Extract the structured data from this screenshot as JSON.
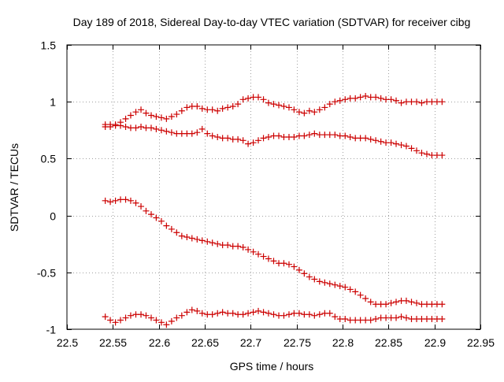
{
  "chart_data": {
    "type": "scatter",
    "title": "Day 189 of 2018, Sidereal Day-to-day VTEC variation (SDTVAR) for receiver cibg",
    "xlabel": "GPS time / hours",
    "ylabel": "SDTVAR / TECUs",
    "xlim": [
      22.5,
      22.95
    ],
    "ylim": [
      -1,
      1.5
    ],
    "xticks": [
      22.5,
      22.55,
      22.6,
      22.65,
      22.7,
      22.75,
      22.8,
      22.85,
      22.9,
      22.95
    ],
    "yticks": [
      -1,
      -0.5,
      0,
      0.5,
      1,
      1.5
    ],
    "xtick_labels": [
      "22.5",
      "22.55",
      "22.6",
      "22.65",
      "22.7",
      "22.75",
      "22.8",
      "22.85",
      "22.9",
      "22.95"
    ],
    "ytick_labels": [
      "-1",
      "-0.5",
      "0",
      "0.5",
      "1",
      "1.5"
    ],
    "grid": true,
    "marker": "+",
    "series_color": "#cc0000",
    "series": [
      {
        "name": "series-1",
        "x": [
          22.5417,
          22.5472,
          22.5528,
          22.5583,
          22.5639,
          22.5694,
          22.575,
          22.5806,
          22.5861,
          22.5917,
          22.5972,
          22.6028,
          22.6083,
          22.6139,
          22.6194,
          22.625,
          22.6306,
          22.6361,
          22.6417,
          22.6472,
          22.6528,
          22.6583,
          22.6639,
          22.6694,
          22.675,
          22.6806,
          22.6861,
          22.6917,
          22.6972,
          22.7028,
          22.7083,
          22.7139,
          22.7194,
          22.725,
          22.7306,
          22.7361,
          22.7417,
          22.7472,
          22.7528,
          22.7583,
          22.7639,
          22.7694,
          22.775,
          22.7806,
          22.7861,
          22.7917,
          22.7972,
          22.8028,
          22.8083,
          22.8139,
          22.8194,
          22.825,
          22.8306,
          22.8361,
          22.8417,
          22.8472,
          22.8528,
          22.8583,
          22.8639,
          22.8694,
          22.875,
          22.8806,
          22.8861,
          22.8917,
          22.8972,
          22.9028,
          22.9083
        ],
        "y": [
          0.8,
          0.8,
          0.8,
          0.82,
          0.85,
          0.88,
          0.91,
          0.93,
          0.9,
          0.88,
          0.87,
          0.86,
          0.85,
          0.87,
          0.89,
          0.92,
          0.95,
          0.96,
          0.96,
          0.94,
          0.93,
          0.93,
          0.92,
          0.94,
          0.95,
          0.96,
          0.98,
          1.02,
          1.03,
          1.04,
          1.04,
          1.02,
          0.99,
          0.98,
          0.97,
          0.96,
          0.95,
          0.93,
          0.91,
          0.9,
          0.92,
          0.91,
          0.93,
          0.95,
          0.98,
          1.0,
          1.01,
          1.02,
          1.03,
          1.03,
          1.04,
          1.05,
          1.04,
          1.04,
          1.03,
          1.02,
          1.02,
          1.01,
          0.99,
          1.0,
          1.0,
          1.0,
          0.99,
          1.0,
          1.0,
          1.0,
          1.0
        ]
      },
      {
        "name": "series-2",
        "x": [
          22.5417,
          22.5472,
          22.5528,
          22.5583,
          22.5639,
          22.5694,
          22.575,
          22.5806,
          22.5861,
          22.5917,
          22.5972,
          22.6028,
          22.6083,
          22.6139,
          22.6194,
          22.625,
          22.6306,
          22.6361,
          22.6417,
          22.6472,
          22.6528,
          22.6583,
          22.6639,
          22.6694,
          22.675,
          22.6806,
          22.6861,
          22.6917,
          22.6972,
          22.7028,
          22.7083,
          22.7139,
          22.7194,
          22.725,
          22.7306,
          22.7361,
          22.7417,
          22.7472,
          22.7528,
          22.7583,
          22.7639,
          22.7694,
          22.775,
          22.7806,
          22.7861,
          22.7917,
          22.7972,
          22.8028,
          22.8083,
          22.8139,
          22.8194,
          22.825,
          22.8306,
          22.8361,
          22.8417,
          22.8472,
          22.8528,
          22.8583,
          22.8639,
          22.8694,
          22.875,
          22.8806,
          22.8861,
          22.8917,
          22.8972,
          22.9028,
          22.9083
        ],
        "y": [
          0.78,
          0.78,
          0.79,
          0.79,
          0.78,
          0.77,
          0.77,
          0.78,
          0.77,
          0.77,
          0.76,
          0.75,
          0.74,
          0.73,
          0.72,
          0.72,
          0.72,
          0.72,
          0.73,
          0.76,
          0.72,
          0.7,
          0.69,
          0.68,
          0.68,
          0.67,
          0.67,
          0.66,
          0.63,
          0.64,
          0.66,
          0.68,
          0.69,
          0.7,
          0.7,
          0.69,
          0.69,
          0.69,
          0.7,
          0.7,
          0.71,
          0.72,
          0.71,
          0.71,
          0.71,
          0.71,
          0.7,
          0.7,
          0.69,
          0.68,
          0.68,
          0.68,
          0.67,
          0.66,
          0.65,
          0.64,
          0.64,
          0.63,
          0.62,
          0.61,
          0.59,
          0.57,
          0.55,
          0.54,
          0.53,
          0.53,
          0.53
        ]
      },
      {
        "name": "series-3",
        "x": [
          22.5417,
          22.5472,
          22.5528,
          22.5583,
          22.5639,
          22.5694,
          22.575,
          22.5806,
          22.5861,
          22.5917,
          22.5972,
          22.6028,
          22.6083,
          22.6139,
          22.6194,
          22.625,
          22.6306,
          22.6361,
          22.6417,
          22.6472,
          22.6528,
          22.6583,
          22.6639,
          22.6694,
          22.675,
          22.6806,
          22.6861,
          22.6917,
          22.6972,
          22.7028,
          22.7083,
          22.7139,
          22.7194,
          22.725,
          22.7306,
          22.7361,
          22.7417,
          22.7472,
          22.7528,
          22.7583,
          22.7639,
          22.7694,
          22.775,
          22.7806,
          22.7861,
          22.7917,
          22.7972,
          22.8028,
          22.8083,
          22.8139,
          22.8194,
          22.825,
          22.8306,
          22.8361,
          22.8417,
          22.8472,
          22.8528,
          22.8583,
          22.8639,
          22.8694,
          22.875,
          22.8806,
          22.8861,
          22.8917,
          22.8972,
          22.9028,
          22.9083
        ],
        "y": [
          0.13,
          0.12,
          0.13,
          0.14,
          0.14,
          0.13,
          0.11,
          0.08,
          0.04,
          0.01,
          -0.02,
          -0.05,
          -0.09,
          -0.12,
          -0.15,
          -0.18,
          -0.19,
          -0.2,
          -0.21,
          -0.22,
          -0.23,
          -0.24,
          -0.25,
          -0.26,
          -0.26,
          -0.27,
          -0.27,
          -0.28,
          -0.3,
          -0.32,
          -0.34,
          -0.36,
          -0.38,
          -0.4,
          -0.42,
          -0.42,
          -0.43,
          -0.45,
          -0.48,
          -0.51,
          -0.54,
          -0.56,
          -0.58,
          -0.59,
          -0.6,
          -0.61,
          -0.62,
          -0.63,
          -0.65,
          -0.67,
          -0.7,
          -0.73,
          -0.76,
          -0.78,
          -0.78,
          -0.78,
          -0.77,
          -0.76,
          -0.75,
          -0.75,
          -0.76,
          -0.77,
          -0.78,
          -0.78,
          -0.78,
          -0.78,
          -0.78
        ]
      },
      {
        "name": "series-4",
        "x": [
          22.5417,
          22.5472,
          22.5528,
          22.5583,
          22.5639,
          22.5694,
          22.575,
          22.5806,
          22.5861,
          22.5917,
          22.5972,
          22.6028,
          22.6083,
          22.6139,
          22.6194,
          22.625,
          22.6306,
          22.6361,
          22.6417,
          22.6472,
          22.6528,
          22.6583,
          22.6639,
          22.6694,
          22.675,
          22.6806,
          22.6861,
          22.6917,
          22.6972,
          22.7028,
          22.7083,
          22.7139,
          22.7194,
          22.725,
          22.7306,
          22.7361,
          22.7417,
          22.7472,
          22.7528,
          22.7583,
          22.7639,
          22.7694,
          22.775,
          22.7806,
          22.7861,
          22.7917,
          22.7972,
          22.8028,
          22.8083,
          22.8139,
          22.8194,
          22.825,
          22.8306,
          22.8361,
          22.8417,
          22.8472,
          22.8528,
          22.8583,
          22.8639,
          22.8694,
          22.875,
          22.8806,
          22.8861,
          22.8917,
          22.8972,
          22.9028,
          22.9083
        ],
        "y": [
          -0.89,
          -0.92,
          -0.94,
          -0.92,
          -0.9,
          -0.88,
          -0.87,
          -0.87,
          -0.88,
          -0.9,
          -0.92,
          -0.94,
          -0.96,
          -0.93,
          -0.9,
          -0.88,
          -0.85,
          -0.83,
          -0.84,
          -0.86,
          -0.87,
          -0.87,
          -0.86,
          -0.85,
          -0.86,
          -0.86,
          -0.87,
          -0.87,
          -0.86,
          -0.85,
          -0.84,
          -0.85,
          -0.86,
          -0.87,
          -0.88,
          -0.88,
          -0.87,
          -0.86,
          -0.86,
          -0.87,
          -0.87,
          -0.88,
          -0.87,
          -0.86,
          -0.86,
          -0.89,
          -0.91,
          -0.91,
          -0.92,
          -0.92,
          -0.92,
          -0.92,
          -0.92,
          -0.91,
          -0.9,
          -0.9,
          -0.9,
          -0.9,
          -0.89,
          -0.9,
          -0.91,
          -0.91,
          -0.91,
          -0.91,
          -0.91,
          -0.91,
          -0.91
        ]
      }
    ]
  }
}
